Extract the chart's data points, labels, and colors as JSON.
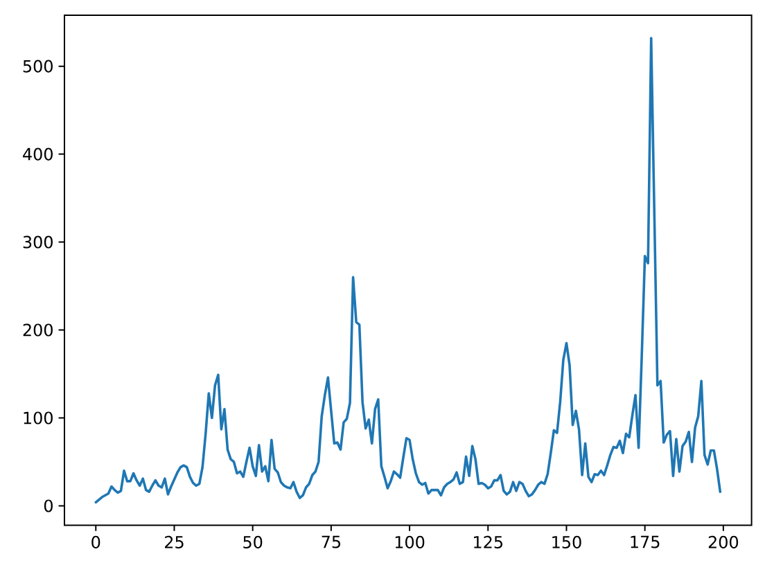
{
  "chart_data": {
    "type": "line",
    "color": "#1f77b4",
    "line_style": "solid",
    "marker": "none",
    "x": [
      0,
      1,
      2,
      3,
      4,
      5,
      6,
      7,
      8,
      9,
      10,
      11,
      12,
      13,
      14,
      15,
      16,
      17,
      18,
      19,
      20,
      21,
      22,
      23,
      24,
      25,
      26,
      27,
      28,
      29,
      30,
      31,
      32,
      33,
      34,
      35,
      36,
      37,
      38,
      39,
      40,
      41,
      42,
      43,
      44,
      45,
      46,
      47,
      48,
      49,
      50,
      51,
      52,
      53,
      54,
      55,
      56,
      57,
      58,
      59,
      60,
      61,
      62,
      63,
      64,
      65,
      66,
      67,
      68,
      69,
      70,
      71,
      72,
      73,
      74,
      75,
      76,
      77,
      78,
      79,
      80,
      81,
      82,
      83,
      84,
      85,
      86,
      87,
      88,
      89,
      90,
      91,
      92,
      93,
      94,
      95,
      96,
      97,
      98,
      99,
      100,
      101,
      102,
      103,
      104,
      105,
      106,
      107,
      108,
      109,
      110,
      111,
      112,
      113,
      114,
      115,
      116,
      117,
      118,
      119,
      120,
      121,
      122,
      123,
      124,
      125,
      126,
      127,
      128,
      129,
      130,
      131,
      132,
      133,
      134,
      135,
      136,
      137,
      138,
      139,
      140,
      141,
      142,
      143,
      144,
      145,
      146,
      147,
      148,
      149,
      150,
      151,
      152,
      153,
      154,
      155,
      156,
      157,
      158,
      159,
      160,
      161,
      162,
      163,
      164,
      165,
      166,
      167,
      168,
      169,
      170,
      171,
      172,
      173,
      174,
      175,
      176,
      177,
      179,
      180,
      181,
      182,
      183,
      184,
      185,
      186,
      187,
      188,
      189,
      190,
      191,
      192,
      193,
      194,
      195,
      196,
      197,
      198,
      199
    ],
    "values": [
      4,
      7,
      10,
      12,
      14,
      22,
      18,
      15,
      17,
      40,
      28,
      28,
      37,
      29,
      23,
      31,
      18,
      16,
      23,
      29,
      23,
      21,
      31,
      13,
      22,
      30,
      38,
      44,
      46,
      44,
      33,
      26,
      23,
      25,
      44,
      82,
      128,
      100,
      137,
      149,
      87,
      110,
      64,
      53,
      50,
      37,
      39,
      33,
      50,
      66,
      45,
      34,
      69,
      39,
      45,
      28,
      75,
      42,
      38,
      27,
      23,
      21,
      20,
      27,
      16,
      9,
      12,
      21,
      25,
      35,
      39,
      50,
      102,
      126,
      146,
      108,
      71,
      72,
      64,
      95,
      99,
      117,
      260,
      209,
      206,
      118,
      88,
      98,
      71,
      110,
      121,
      45,
      33,
      20,
      28,
      39,
      36,
      32,
      55,
      77,
      75,
      53,
      37,
      27,
      24,
      26,
      14,
      18,
      18,
      18,
      12,
      21,
      25,
      27,
      30,
      38,
      25,
      27,
      56,
      34,
      68,
      53,
      25,
      26,
      24,
      20,
      22,
      29,
      29,
      35,
      17,
      13,
      16,
      27,
      17,
      27,
      25,
      17,
      11,
      13,
      18,
      24,
      27,
      25,
      36,
      60,
      86,
      83,
      118,
      166,
      185,
      160,
      92,
      108,
      87,
      35,
      71,
      33,
      27,
      36,
      35,
      40,
      35,
      46,
      58,
      67,
      66,
      74,
      60,
      82,
      78,
      103,
      126,
      66,
      170,
      284,
      276,
      532,
      137,
      142,
      72,
      81,
      85,
      34,
      76,
      39,
      68,
      73,
      84,
      50,
      89,
      102,
      142,
      58,
      47,
      63,
      63,
      42,
      16
    ],
    "xlim": [
      -10,
      209
    ],
    "ylim": [
      -22,
      558
    ],
    "xticks": [
      0,
      25,
      50,
      75,
      100,
      125,
      150,
      175,
      200
    ],
    "yticks": [
      0,
      100,
      200,
      300,
      400,
      500
    ]
  }
}
